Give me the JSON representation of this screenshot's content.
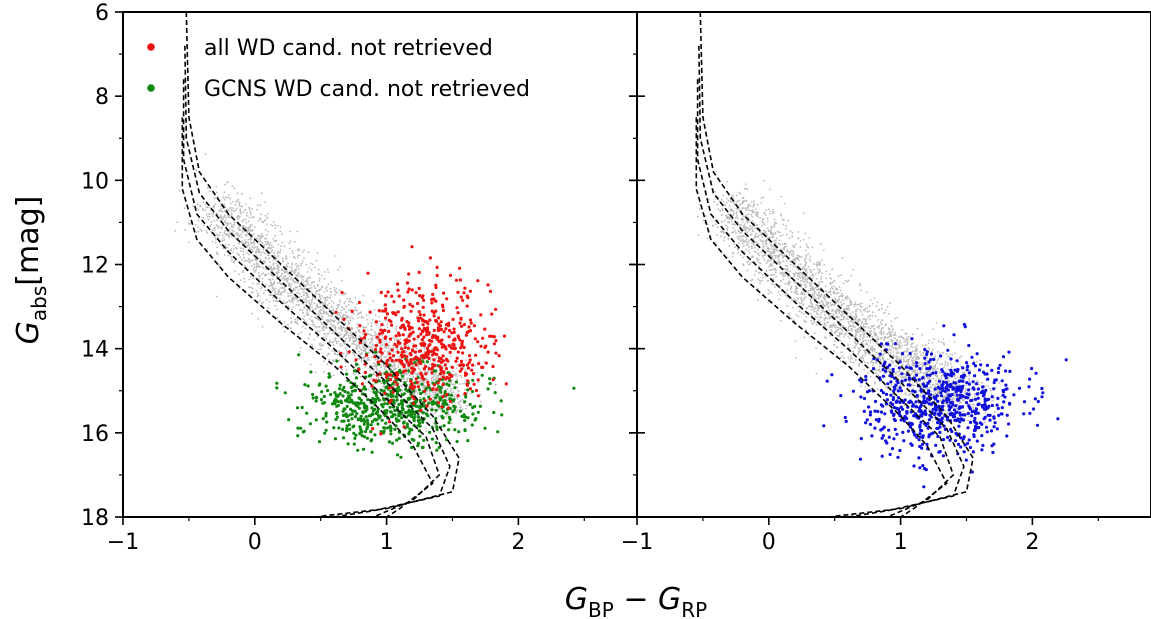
{
  "chart_data": [
    {
      "type": "scatter",
      "panel": "left",
      "xlabel": {
        "main": "G",
        "sub1": "BP",
        "mid": " − G",
        "sub2": "RP"
      },
      "ylabel": {
        "main": "G",
        "sub": "abs",
        "unit": "[mag]"
      },
      "xlim": [
        -1,
        2.9
      ],
      "ylim": [
        18,
        6
      ],
      "xticks": [
        -1,
        0,
        1,
        2
      ],
      "xtick_labels": [
        "−1",
        "0",
        "1",
        "2"
      ],
      "yticks": [
        6,
        8,
        10,
        12,
        14,
        16,
        18
      ],
      "ytick_labels": [
        "6",
        "8",
        "10",
        "12",
        "14",
        "16",
        "18"
      ],
      "legend": {
        "placement": "top-left",
        "entries": [
          {
            "label": "all WD cand. not retrieved",
            "color": "#ee1111"
          },
          {
            "label": "GCNS WD cand. not retrieved",
            "color": "#118811"
          }
        ]
      },
      "series": [
        {
          "name": "all WD cand. not retrieved",
          "color": "#ee1111",
          "cloud": {
            "n": 520,
            "center": [
              1.28,
              13.9
            ],
            "spread": [
              0.26,
              0.7
            ]
          }
        },
        {
          "name": "GCNS WD cand. not retrieved",
          "color": "#118811",
          "cloud": {
            "n": 620,
            "center": [
              1.05,
              15.35
            ],
            "spread": [
              0.32,
              0.45
            ]
          }
        },
        {
          "color": "#bbbbbb",
          "cloud": {
            "n": 2600,
            "band": [
              [
                -0.3,
                10.6
              ],
              [
                0.3,
                12.6
              ],
              [
                0.9,
                14.1
              ],
              [
                1.5,
                15.2
              ]
            ],
            "spread": 0.35
          }
        }
      ],
      "curves": [
        {
          "color": "#000000",
          "style": "dashed",
          "points": [
            [
              -0.52,
              6.0
            ],
            [
              -0.5,
              8.5
            ],
            [
              -0.42,
              9.8
            ],
            [
              -0.2,
              10.8
            ],
            [
              0.2,
              12.0
            ],
            [
              0.6,
              13.2
            ],
            [
              1.0,
              14.4
            ],
            [
              1.35,
              15.6
            ],
            [
              1.55,
              16.6
            ],
            [
              1.5,
              17.4
            ],
            [
              1.0,
              17.8
            ],
            [
              0.45,
              18.0
            ]
          ]
        },
        {
          "color": "#000000",
          "style": "dashed",
          "points": [
            [
              -0.53,
              6.8
            ],
            [
              -0.52,
              9.0
            ],
            [
              -0.42,
              10.3
            ],
            [
              -0.2,
              11.2
            ],
            [
              0.2,
              12.4
            ],
            [
              0.6,
              13.6
            ],
            [
              1.0,
              14.8
            ],
            [
              1.35,
              15.9
            ],
            [
              1.48,
              16.8
            ],
            [
              1.4,
              17.5
            ],
            [
              0.9,
              17.85
            ],
            [
              0.6,
              18.0
            ]
          ]
        },
        {
          "color": "#000000",
          "style": "dashed",
          "points": [
            [
              -0.54,
              7.6
            ],
            [
              -0.54,
              9.5
            ],
            [
              -0.44,
              10.8
            ],
            [
              -0.2,
              11.7
            ],
            [
              0.2,
              12.9
            ],
            [
              0.6,
              14.0
            ],
            [
              1.0,
              15.2
            ],
            [
              1.3,
              16.1
            ],
            [
              1.4,
              17.0
            ],
            [
              1.2,
              17.6
            ],
            [
              0.9,
              18.0
            ]
          ]
        },
        {
          "color": "#000000",
          "style": "dashed",
          "points": [
            [
              -0.55,
              8.5
            ],
            [
              -0.55,
              10.2
            ],
            [
              -0.44,
              11.4
            ],
            [
              -0.2,
              12.3
            ],
            [
              0.2,
              13.4
            ],
            [
              0.6,
              14.4
            ],
            [
              1.0,
              15.6
            ],
            [
              1.2,
              16.3
            ],
            [
              1.35,
              17.2
            ],
            [
              1.1,
              17.8
            ],
            [
              1.0,
              18.0
            ]
          ]
        }
      ]
    },
    {
      "type": "scatter",
      "panel": "right",
      "xlim": [
        -1,
        2.9
      ],
      "ylim": [
        18,
        6
      ],
      "xticks": [
        -1,
        0,
        1,
        2
      ],
      "xtick_labels": [
        "−1",
        "0",
        "1",
        "2"
      ],
      "yticks": [
        6,
        8,
        10,
        12,
        14,
        16,
        18
      ],
      "series": [
        {
          "color": "#1111dd",
          "cloud": {
            "n": 650,
            "center": [
              1.3,
              15.3
            ],
            "spread": [
              0.3,
              0.6
            ]
          }
        },
        {
          "color": "#bbbbbb",
          "cloud": {
            "n": 2600,
            "band": [
              [
                -0.3,
                10.6
              ],
              [
                0.3,
                12.6
              ],
              [
                0.9,
                14.1
              ],
              [
                1.5,
                15.2
              ]
            ],
            "spread": 0.35
          }
        }
      ],
      "curves": [
        {
          "color": "#000000",
          "style": "dashed",
          "points": [
            [
              -0.52,
              6.0
            ],
            [
              -0.5,
              8.5
            ],
            [
              -0.42,
              9.8
            ],
            [
              -0.2,
              10.8
            ],
            [
              0.2,
              12.0
            ],
            [
              0.6,
              13.2
            ],
            [
              1.0,
              14.4
            ],
            [
              1.35,
              15.6
            ],
            [
              1.55,
              16.6
            ],
            [
              1.5,
              17.4
            ],
            [
              1.0,
              17.8
            ],
            [
              0.45,
              18.0
            ]
          ]
        },
        {
          "color": "#000000",
          "style": "dashed",
          "points": [
            [
              -0.53,
              6.8
            ],
            [
              -0.52,
              9.0
            ],
            [
              -0.42,
              10.3
            ],
            [
              -0.2,
              11.2
            ],
            [
              0.2,
              12.4
            ],
            [
              0.6,
              13.6
            ],
            [
              1.0,
              14.8
            ],
            [
              1.35,
              15.9
            ],
            [
              1.48,
              16.8
            ],
            [
              1.4,
              17.5
            ],
            [
              0.9,
              17.85
            ],
            [
              0.6,
              18.0
            ]
          ]
        },
        {
          "color": "#000000",
          "style": "dashed",
          "points": [
            [
              -0.54,
              7.6
            ],
            [
              -0.54,
              9.5
            ],
            [
              -0.44,
              10.8
            ],
            [
              -0.2,
              11.7
            ],
            [
              0.2,
              12.9
            ],
            [
              0.6,
              14.0
            ],
            [
              1.0,
              15.2
            ],
            [
              1.3,
              16.1
            ],
            [
              1.4,
              17.0
            ],
            [
              1.2,
              17.6
            ],
            [
              0.9,
              18.0
            ]
          ]
        },
        {
          "color": "#000000",
          "style": "dashed",
          "points": [
            [
              -0.55,
              8.5
            ],
            [
              -0.55,
              10.2
            ],
            [
              -0.44,
              11.4
            ],
            [
              -0.2,
              12.3
            ],
            [
              0.2,
              13.4
            ],
            [
              0.6,
              14.4
            ],
            [
              1.0,
              15.6
            ],
            [
              1.2,
              16.3
            ],
            [
              1.35,
              17.2
            ],
            [
              1.1,
              17.8
            ],
            [
              1.0,
              18.0
            ]
          ]
        }
      ]
    }
  ]
}
